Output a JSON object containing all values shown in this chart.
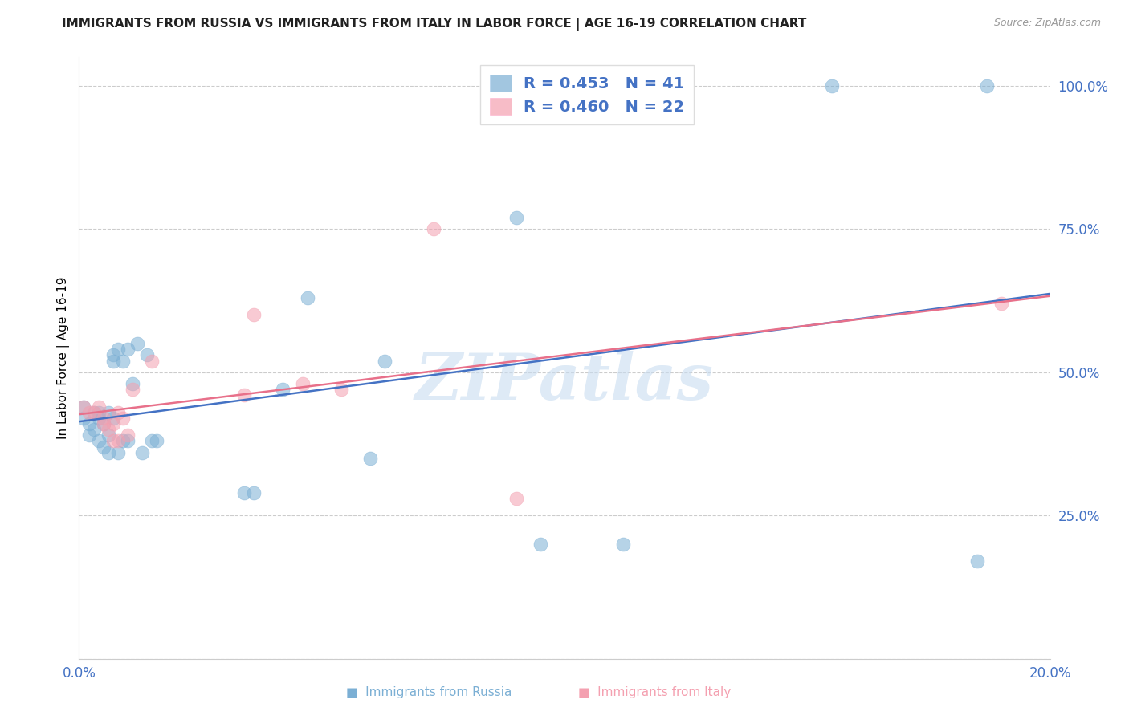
{
  "title": "IMMIGRANTS FROM RUSSIA VS IMMIGRANTS FROM ITALY IN LABOR FORCE | AGE 16-19 CORRELATION CHART",
  "source": "Source: ZipAtlas.com",
  "ylabel": "In Labor Force | Age 16-19",
  "xlim": [
    0.0,
    0.2
  ],
  "ylim": [
    0.0,
    1.05
  ],
  "russia_color": "#7BAFD4",
  "italy_color": "#F4A0B0",
  "russia_line_color": "#4472C4",
  "italy_line_color": "#E8708A",
  "russia_R": 0.453,
  "russia_N": 41,
  "italy_R": 0.46,
  "italy_N": 22,
  "russia_x": [
    0.001,
    0.001,
    0.002,
    0.002,
    0.003,
    0.003,
    0.004,
    0.004,
    0.004,
    0.005,
    0.005,
    0.006,
    0.006,
    0.006,
    0.007,
    0.007,
    0.007,
    0.008,
    0.008,
    0.009,
    0.009,
    0.01,
    0.01,
    0.011,
    0.012,
    0.013,
    0.014,
    0.015,
    0.016,
    0.034,
    0.036,
    0.042,
    0.047,
    0.06,
    0.063,
    0.09,
    0.095,
    0.112,
    0.155,
    0.185,
    0.187
  ],
  "russia_y": [
    0.44,
    0.42,
    0.41,
    0.39,
    0.43,
    0.4,
    0.43,
    0.42,
    0.38,
    0.41,
    0.37,
    0.43,
    0.39,
    0.36,
    0.53,
    0.52,
    0.42,
    0.54,
    0.36,
    0.52,
    0.38,
    0.54,
    0.38,
    0.48,
    0.55,
    0.36,
    0.53,
    0.38,
    0.38,
    0.29,
    0.29,
    0.47,
    0.63,
    0.35,
    0.52,
    0.77,
    0.2,
    0.2,
    1.0,
    0.17,
    1.0
  ],
  "italy_x": [
    0.001,
    0.002,
    0.003,
    0.004,
    0.005,
    0.005,
    0.006,
    0.007,
    0.007,
    0.008,
    0.008,
    0.009,
    0.01,
    0.011,
    0.015,
    0.034,
    0.036,
    0.046,
    0.054,
    0.073,
    0.09,
    0.19
  ],
  "italy_y": [
    0.44,
    0.43,
    0.43,
    0.44,
    0.42,
    0.41,
    0.4,
    0.41,
    0.38,
    0.43,
    0.38,
    0.42,
    0.39,
    0.47,
    0.52,
    0.46,
    0.6,
    0.48,
    0.47,
    0.75,
    0.28,
    0.62
  ],
  "watermark_text": "ZIPatlas",
  "ytick_labels": [
    "",
    "25.0%",
    "50.0%",
    "75.0%",
    "100.0%"
  ],
  "xtick_labels": [
    "0.0%",
    "",
    "",
    "",
    "20.0%"
  ]
}
